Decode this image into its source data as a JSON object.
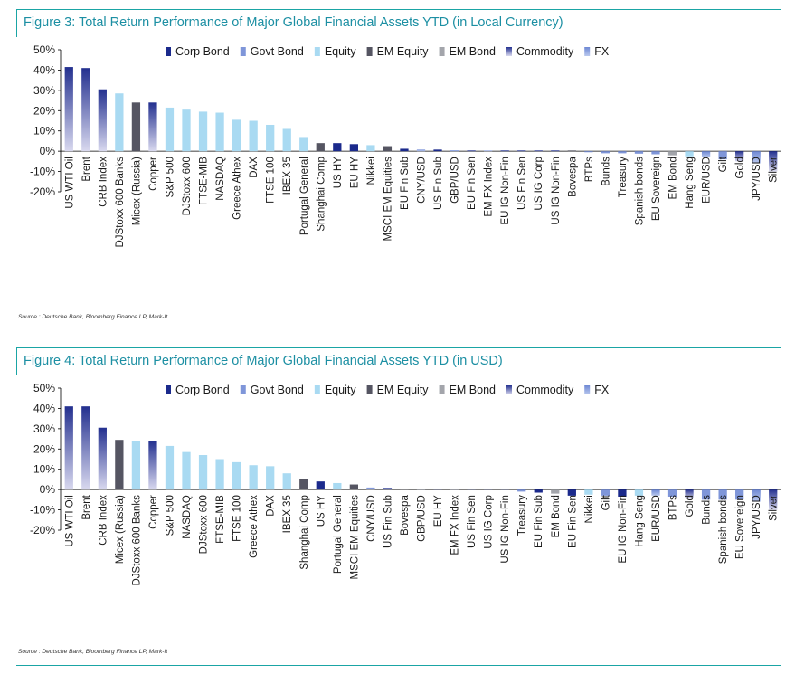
{
  "colors": {
    "corp_bond": "#1b2a8c",
    "govt_bond": "#7f96d9",
    "equity": "#a9daf2",
    "em_equity": "#555562",
    "em_bond": "#a3a5ab",
    "commodity_top": "#23308f",
    "commodity_bottom": "#d9d9ef",
    "fx": "#7f96d9",
    "accent": "#1aa5a5",
    "title": "#1c8fa3"
  },
  "chart_data": [
    {
      "type": "bar",
      "title": "Figure 3: Total Return Performance of Major Global Financial Assets YTD (in Local Currency)",
      "source": "Source : Deutsche Bank, Bloomberg Finance LP, Mark-It",
      "ylim": [
        -20,
        50
      ],
      "yticks": [
        "50%",
        "40%",
        "30%",
        "20%",
        "10%",
        "0%",
        "-10%",
        "-20%"
      ],
      "legend": [
        {
          "label": "Corp Bond",
          "key": "corp_bond"
        },
        {
          "label": "Govt Bond",
          "key": "govt_bond"
        },
        {
          "label": "Equity",
          "key": "equity"
        },
        {
          "label": "EM Equity",
          "key": "em_equity"
        },
        {
          "label": "EM Bond",
          "key": "em_bond"
        },
        {
          "label": "Commodity",
          "key": "commodity"
        },
        {
          "label": "FX",
          "key": "fx"
        }
      ],
      "legend_placement": "top",
      "grid": false,
      "categories": [
        "US WTI Oil",
        "Brent",
        "CRB Index",
        "DJStoxx 600 Banks",
        "Micex (Russia)",
        "Copper",
        "S&P 500",
        "DJStoxx 600",
        "FTSE-MIB",
        "NASDAQ",
        "Greece Athex",
        "DAX",
        "FTSE 100",
        "IBEX 35",
        "Portugal General",
        "Shanghai Comp",
        "US HY",
        "EU HY",
        "Nikkei",
        "MSCI EM Equities",
        "EU Fin Sub",
        "CNY/USD",
        "US Fin Sub",
        "GBP/USD",
        "EU Fin Sen",
        "EM FX Index",
        "EU IG Non-Fin",
        "US Fin Sen",
        "US IG Corp",
        "US IG Non-Fin",
        "Bovespa",
        "BTPs",
        "Bunds",
        "Treasury",
        "Spanish bonds",
        "EU Sovereign",
        "EM Bond",
        "Hang Seng",
        "EUR/USD",
        "Gilt",
        "Gold",
        "JPY/USD",
        "Silver"
      ],
      "values": [
        41.5,
        41,
        30.5,
        28.5,
        24,
        24,
        21.5,
        20.5,
        19.5,
        19,
        15.5,
        15,
        13,
        11,
        7,
        4,
        4,
        3.5,
        3,
        2.5,
        1.2,
        0.8,
        0.8,
        0.5,
        0.3,
        0.2,
        0.1,
        0.1,
        0.1,
        0.1,
        0.1,
        -0.5,
        -1,
        -1,
        -1.2,
        -1.5,
        -2,
        -2.5,
        -3,
        -4,
        -5,
        -6,
        -10
      ],
      "groups": [
        "commodity",
        "commodity",
        "commodity",
        "equity",
        "em_equity",
        "commodity",
        "equity",
        "equity",
        "equity",
        "equity",
        "equity",
        "equity",
        "equity",
        "equity",
        "equity",
        "em_equity",
        "corp_bond",
        "corp_bond",
        "equity",
        "em_equity",
        "corp_bond",
        "fx",
        "corp_bond",
        "fx",
        "corp_bond",
        "fx",
        "corp_bond",
        "corp_bond",
        "corp_bond",
        "corp_bond",
        "em_equity",
        "govt_bond",
        "govt_bond",
        "govt_bond",
        "govt_bond",
        "govt_bond",
        "em_bond",
        "equity",
        "fx",
        "govt_bond",
        "commodity",
        "fx",
        "commodity"
      ]
    },
    {
      "type": "bar",
      "title": "Figure 4: Total Return Performance of Major Global Financial Assets YTD (in USD)",
      "source": "Source : Deutsche Bank, Bloomberg Finance LP, Mark-It",
      "ylim": [
        -20,
        50
      ],
      "yticks": [
        "50%",
        "40%",
        "30%",
        "20%",
        "10%",
        "0%",
        "-10%",
        "-20%"
      ],
      "legend": [
        {
          "label": "Corp Bond",
          "key": "corp_bond"
        },
        {
          "label": "Govt Bond",
          "key": "govt_bond"
        },
        {
          "label": "Equity",
          "key": "equity"
        },
        {
          "label": "EM Equity",
          "key": "em_equity"
        },
        {
          "label": "EM Bond",
          "key": "em_bond"
        },
        {
          "label": "Commodity",
          "key": "commodity"
        },
        {
          "label": "FX",
          "key": "fx"
        }
      ],
      "legend_placement": "top",
      "grid": false,
      "categories": [
        "US WTI Oil",
        "Brent",
        "CRB Index",
        "Micex (Russia)",
        "DJStoxx 600 Banks",
        "Copper",
        "S&P 500",
        "NASDAQ",
        "DJStoxx 600",
        "FTSE-MIB",
        "FTSE 100",
        "Greece Athex",
        "DAX",
        "IBEX 35",
        "Shanghai Comp",
        "US HY",
        "Portugal General",
        "MSCI EM Equities",
        "CNY/USD",
        "US Fin Sub",
        "Bovespa",
        "GBP/USD",
        "EU HY",
        "EM FX Index",
        "US Fin Sen",
        "US IG Corp",
        "US IG Non-Fin",
        "Treasury",
        "EU Fin Sub",
        "EM Bond",
        "EU Fin Sen",
        "Nikkei",
        "Gilt",
        "EU IG Non-Fin",
        "Hang Seng",
        "EUR/USD",
        "BTPs",
        "Gold",
        "Bunds",
        "Spanish bonds",
        "EU Sovereign",
        "JPY/USD",
        "Silver"
      ],
      "values": [
        41,
        41,
        30.5,
        24.5,
        24,
        24,
        21.5,
        18.5,
        17,
        15,
        13.5,
        12,
        11.5,
        8,
        5,
        4,
        3.2,
        2.5,
        1,
        0.8,
        0.4,
        0.3,
        0.2,
        0.1,
        0.1,
        0.1,
        0.1,
        -1,
        -1.5,
        -2,
        -3,
        -2.5,
        -3,
        -3.5,
        -3,
        -3,
        -3.5,
        -4.5,
        -5,
        -5,
        -5,
        -6,
        -10
      ],
      "groups": [
        "commodity",
        "commodity",
        "commodity",
        "em_equity",
        "equity",
        "commodity",
        "equity",
        "equity",
        "equity",
        "equity",
        "equity",
        "equity",
        "equity",
        "equity",
        "em_equity",
        "corp_bond",
        "equity",
        "em_equity",
        "fx",
        "corp_bond",
        "em_equity",
        "fx",
        "corp_bond",
        "fx",
        "corp_bond",
        "corp_bond",
        "corp_bond",
        "govt_bond",
        "corp_bond",
        "em_bond",
        "corp_bond",
        "equity",
        "govt_bond",
        "corp_bond",
        "equity",
        "fx",
        "govt_bond",
        "commodity",
        "govt_bond",
        "govt_bond",
        "govt_bond",
        "fx",
        "commodity"
      ]
    }
  ]
}
